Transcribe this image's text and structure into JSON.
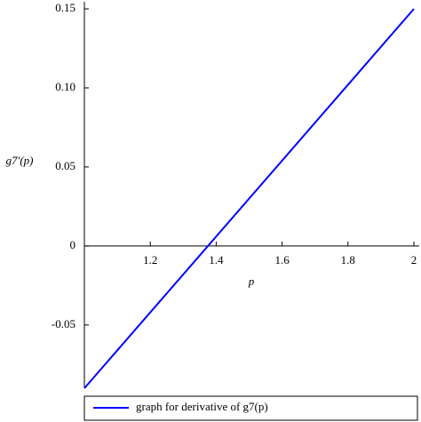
{
  "chart_data": {
    "type": "line",
    "x_label": "p",
    "y_label": "g7′(p)",
    "x": [
      1,
      2
    ],
    "series": [
      {
        "name": "graph for derivative of g7(p)",
        "color": "#0000ff",
        "values": [
          -0.09,
          0.15
        ]
      }
    ],
    "xlim": [
      1,
      2
    ],
    "xticks": [
      1.2,
      1.4,
      1.6,
      1.8,
      2
    ],
    "ylim": [
      -0.09,
      0.15
    ],
    "yticks": [
      -0.05,
      0,
      0.05,
      {
        "value": 0.1,
        "label": "0.10"
      },
      0.15
    ],
    "legend": "bottom"
  }
}
